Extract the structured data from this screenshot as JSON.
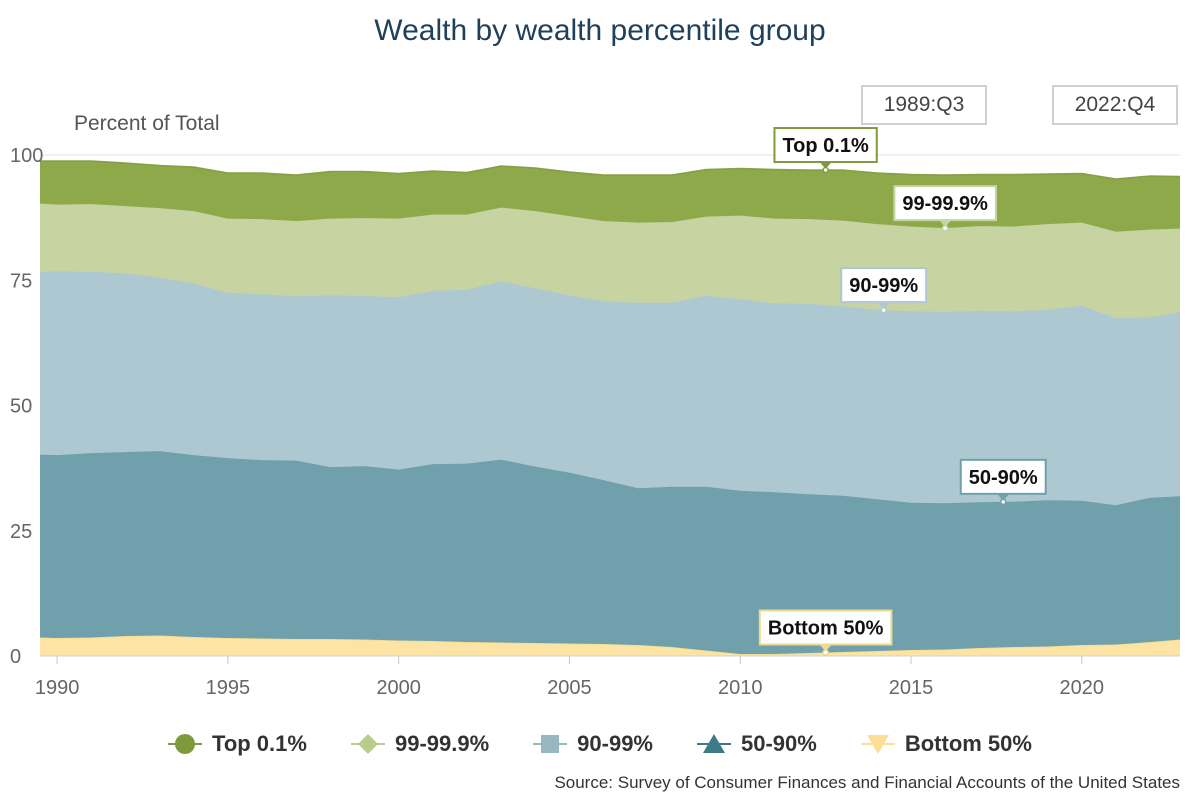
{
  "title": "Wealth by wealth percentile group",
  "range_selector": {
    "from": "1989:Q3",
    "to": "2022:Q4"
  },
  "source": "Source: Survey of Consumer Finances and Financial Accounts of the United States",
  "colors": {
    "top01": "#8ea94a",
    "p99_999": "#c7d4a2",
    "p90_99": "#adc8d0",
    "p50_90": "#6fa0ac",
    "bottom50": "#fde4a4"
  },
  "chart_data": {
    "type": "area",
    "stacked": true,
    "ylabel": "Percent of Total",
    "ylim": [
      0,
      100
    ],
    "yticks": [
      0,
      25,
      50,
      75,
      100
    ],
    "xlim": [
      1989.5,
      2022.875
    ],
    "xticks": [
      1990,
      1995,
      2000,
      2005,
      2010,
      2015,
      2020
    ],
    "x": [
      1989.5,
      1990,
      1991,
      1992,
      1993,
      1994,
      1995,
      1996,
      1997,
      1998,
      1999,
      2000,
      2001,
      2002,
      2003,
      2004,
      2005,
      2006,
      2007,
      2008,
      2009,
      2010,
      2011,
      2012,
      2013,
      2014,
      2015,
      2016,
      2017,
      2018,
      2019,
      2020,
      2021,
      2022,
      2022.875
    ],
    "series": [
      {
        "key": "bottom50",
        "name": "Bottom 50%",
        "marker": "triangle-down",
        "values": [
          3.7,
          3.6,
          3.7,
          4.0,
          4.1,
          3.8,
          3.6,
          3.5,
          3.4,
          3.4,
          3.3,
          3.1,
          3.0,
          2.8,
          2.7,
          2.6,
          2.5,
          2.4,
          2.2,
          1.8,
          1.1,
          0.4,
          0.4,
          0.6,
          0.8,
          1.0,
          1.2,
          1.3,
          1.6,
          1.8,
          1.9,
          2.2,
          2.3,
          2.8,
          3.3
        ]
      },
      {
        "key": "p50_90",
        "name": "50-90%",
        "marker": "triangle-up",
        "values": [
          36.5,
          36.5,
          36.8,
          36.7,
          36.8,
          36.3,
          35.9,
          35.6,
          35.6,
          34.3,
          34.6,
          34.1,
          35.3,
          35.6,
          36.5,
          35.2,
          34.1,
          32.7,
          31.3,
          32.0,
          32.7,
          32.6,
          32.3,
          31.7,
          31.2,
          30.3,
          29.4,
          29.2,
          29.1,
          29.0,
          29.2,
          28.8,
          27.8,
          28.8,
          28.6
        ]
      },
      {
        "key": "p90_99",
        "name": "90-99%",
        "marker": "square",
        "values": [
          36.5,
          36.7,
          36.2,
          35.7,
          34.6,
          34.3,
          33.0,
          33.1,
          32.8,
          34.3,
          34.0,
          34.4,
          34.6,
          34.7,
          35.6,
          35.6,
          35.4,
          35.7,
          37.0,
          36.7,
          38.1,
          38.2,
          37.7,
          38.0,
          37.8,
          37.8,
          38.2,
          38.2,
          38.2,
          38.0,
          38.0,
          38.9,
          37.3,
          36.0,
          36.7
        ]
      },
      {
        "key": "p99_999",
        "name": "99-99.9%",
        "marker": "diamond",
        "values": [
          13.6,
          13.3,
          13.5,
          13.4,
          13.9,
          14.4,
          14.8,
          15.0,
          15.0,
          15.3,
          15.5,
          15.7,
          15.2,
          15.0,
          14.7,
          15.4,
          15.8,
          16.0,
          16.0,
          16.1,
          15.8,
          16.7,
          16.9,
          16.9,
          17.1,
          17.1,
          16.9,
          16.7,
          16.9,
          16.9,
          17.1,
          16.6,
          17.3,
          17.5,
          16.7
        ]
      },
      {
        "key": "top01",
        "name": "Top 0.1%",
        "marker": "circle",
        "values": [
          8.5,
          8.7,
          8.6,
          8.6,
          8.5,
          8.8,
          9.1,
          9.2,
          9.2,
          9.4,
          9.3,
          9.0,
          8.7,
          8.4,
          8.3,
          8.6,
          8.8,
          9.2,
          9.5,
          9.4,
          9.4,
          9.4,
          9.8,
          9.8,
          10.1,
          10.2,
          10.4,
          10.6,
          10.3,
          10.4,
          10.0,
          9.8,
          10.5,
          10.7,
          10.4
        ]
      }
    ],
    "annotations": [
      {
        "series": "top01",
        "text": "Top 0.1%",
        "x": 2012.5
      },
      {
        "series": "p99_999",
        "text": "99-99.9%",
        "x": 2016.0
      },
      {
        "series": "p90_99",
        "text": "90-99%",
        "x": 2014.2
      },
      {
        "series": "p50_90",
        "text": "50-90%",
        "x": 2017.7
      },
      {
        "series": "bottom50",
        "text": "Bottom 50%",
        "x": 2012.5
      }
    ],
    "legend": [
      "Top 0.1%",
      "99-99.9%",
      "90-99%",
      "50-90%",
      "Bottom 50%"
    ],
    "legend_position": "bottom",
    "grid": true
  }
}
